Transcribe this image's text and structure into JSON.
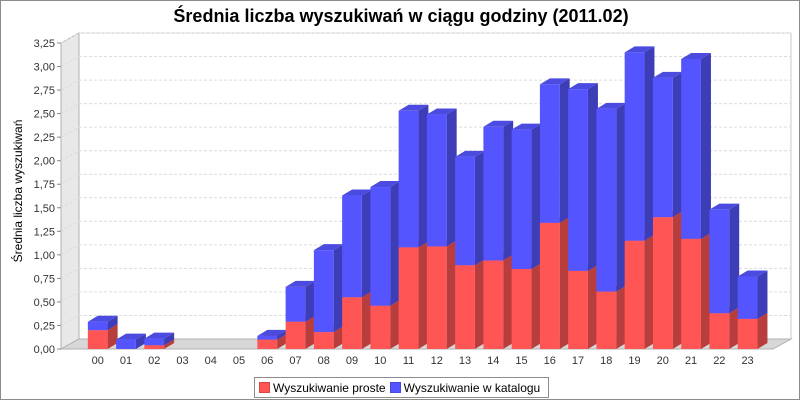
{
  "chart_data": {
    "type": "bar",
    "stacked": true,
    "three_d": true,
    "title": "Średnia liczba wyszukiwań w ciągu godziny (2011.02)",
    "xlabel": "",
    "ylabel": "Średnia liczba wyszukiwań",
    "categories": [
      "00",
      "01",
      "02",
      "03",
      "04",
      "05",
      "06",
      "07",
      "08",
      "09",
      "10",
      "11",
      "12",
      "13",
      "14",
      "15",
      "16",
      "17",
      "18",
      "19",
      "20",
      "21",
      "22",
      "23"
    ],
    "ylim": [
      0,
      3.25
    ],
    "yticks": [
      0,
      0.25,
      0.5,
      0.75,
      1.0,
      1.25,
      1.5,
      1.75,
      2.0,
      2.25,
      2.5,
      2.75,
      3.0,
      3.25
    ],
    "ytick_labels": [
      "0,00",
      "0,25",
      "0,50",
      "0,75",
      "1,00",
      "1,25",
      "1,50",
      "1,75",
      "2,00",
      "2,25",
      "2,50",
      "2,75",
      "3,00",
      "3,25"
    ],
    "grid": true,
    "legend_position": "bottom",
    "series": [
      {
        "name": "Wyszukiwanie proste",
        "color": "#ff5555",
        "values": [
          0.2,
          0.0,
          0.04,
          0.0,
          0.0,
          0.0,
          0.1,
          0.29,
          0.18,
          0.55,
          0.46,
          1.08,
          1.09,
          0.89,
          0.94,
          0.85,
          1.34,
          0.83,
          0.61,
          1.15,
          1.4,
          1.17,
          0.38,
          0.32
        ]
      },
      {
        "name": "Wyszukiwanie w katalogu",
        "color": "#5555ff",
        "values": [
          0.09,
          0.1,
          0.07,
          0.0,
          0.0,
          0.0,
          0.04,
          0.37,
          0.87,
          1.08,
          1.26,
          1.45,
          1.4,
          1.15,
          1.42,
          1.48,
          1.47,
          1.93,
          1.94,
          2.0,
          1.48,
          1.91,
          1.1,
          0.45
        ]
      }
    ]
  }
}
